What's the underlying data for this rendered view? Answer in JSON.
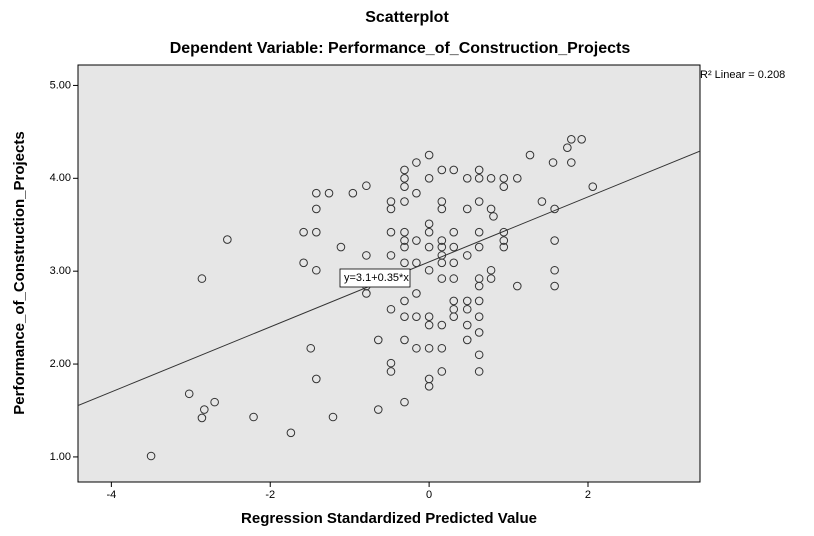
{
  "chart_data": {
    "type": "scatter",
    "title": "Scatterplot",
    "subtitle": "Dependent Variable: Performance_of_Construction_Projects",
    "x_label": "Regression Standardized Predicted Value",
    "y_label": "Performance_of_Construction_Projects",
    "xlim": [
      -4.42,
      3.41
    ],
    "ylim": [
      0.73,
      5.22
    ],
    "xticks": [
      -4,
      -2,
      0,
      2
    ],
    "yticks": [
      {
        "value": 1,
        "label": "1.00"
      },
      {
        "value": 2,
        "label": "2.00"
      },
      {
        "value": 3,
        "label": "3.00"
      },
      {
        "value": 4,
        "label": "4.00"
      },
      {
        "value": 5,
        "label": "5.00"
      }
    ],
    "fit": {
      "intercept": 3.1,
      "slope": 0.35,
      "label": "y=3.1+0.35*x",
      "r2_label": "R² Linear = 0.208"
    },
    "series": [
      {
        "name": "Performance_of_Construction_Projects",
        "color": "#333333",
        "x": [
          -3.5,
          -3.02,
          -2.86,
          -2.83,
          -2.7,
          -2.86,
          -2.54,
          -2.21,
          -1.74,
          -1.58,
          -1.58,
          -1.49,
          -1.42,
          -1.42,
          -1.42,
          -1.42,
          -1.42,
          -1.26,
          -1.21,
          -1.11,
          -0.96,
          -0.79,
          -0.79,
          -0.79,
          -0.79,
          -0.64,
          -0.64,
          -0.48,
          -0.48,
          -0.48,
          -0.48,
          -0.48,
          -0.48,
          -0.48,
          -0.31,
          -0.31,
          -0.31,
          -0.31,
          -0.31,
          -0.31,
          -0.31,
          -0.31,
          -0.31,
          -0.31,
          -0.31,
          -0.31,
          -0.31,
          -0.16,
          -0.16,
          -0.16,
          -0.16,
          -0.16,
          -0.16,
          -0.16,
          0,
          0,
          0,
          0,
          0,
          0,
          0,
          0,
          0,
          0,
          0,
          0.16,
          0.16,
          0.16,
          0.16,
          0.16,
          0.16,
          0.16,
          0.16,
          0.16,
          0.16,
          0.16,
          0.31,
          0.31,
          0.31,
          0.31,
          0.31,
          0.31,
          0.31,
          0.31,
          0.48,
          0.48,
          0.48,
          0.48,
          0.48,
          0.48,
          0.48,
          0.63,
          0.63,
          0.63,
          0.63,
          0.63,
          0.63,
          0.63,
          0.63,
          0.63,
          0.63,
          0.63,
          0.63,
          0.78,
          0.78,
          0.78,
          0.78,
          0.81,
          0.94,
          0.94,
          0.94,
          0.94,
          0.94,
          1.11,
          1.11,
          1.27,
          1.42,
          1.56,
          1.58,
          1.58,
          1.58,
          1.58,
          1.74,
          1.79,
          1.79,
          1.92,
          2.06
        ],
        "values": [
          1.01,
          1.68,
          1.42,
          1.51,
          1.59,
          2.92,
          3.34,
          1.43,
          1.26,
          3.09,
          3.42,
          2.17,
          3.01,
          3.42,
          3.67,
          3.84,
          1.84,
          3.84,
          1.43,
          3.26,
          3.84,
          3.92,
          3.17,
          2.76,
          2.84,
          1.51,
          2.26,
          3.67,
          3.42,
          3.17,
          2.59,
          2.01,
          1.92,
          3.75,
          4.09,
          4.0,
          3.91,
          3.75,
          3.42,
          3.33,
          3.26,
          3.09,
          2.92,
          2.68,
          2.51,
          2.26,
          1.59,
          4.17,
          3.84,
          3.33,
          3.09,
          2.76,
          2.51,
          2.17,
          4.25,
          4.0,
          3.51,
          3.42,
          3.26,
          3.01,
          2.51,
          2.42,
          2.17,
          1.84,
          1.76,
          4.09,
          3.75,
          3.67,
          3.26,
          3.33,
          3.17,
          3.09,
          2.92,
          2.42,
          2.17,
          1.92,
          4.09,
          3.42,
          3.26,
          3.09,
          2.92,
          2.68,
          2.59,
          2.51,
          4.0,
          3.67,
          3.17,
          2.68,
          2.59,
          2.42,
          2.26,
          4.09,
          4.0,
          3.75,
          3.42,
          3.26,
          2.92,
          2.84,
          2.68,
          2.51,
          2.34,
          2.1,
          1.92,
          4.0,
          3.67,
          3.01,
          2.92,
          3.59,
          4.0,
          3.91,
          3.42,
          3.33,
          3.26,
          4.0,
          2.84,
          4.25,
          3.75,
          4.17,
          3.67,
          3.33,
          3.01,
          2.84,
          4.33,
          4.42,
          4.17,
          4.42,
          3.91
        ]
      }
    ]
  }
}
